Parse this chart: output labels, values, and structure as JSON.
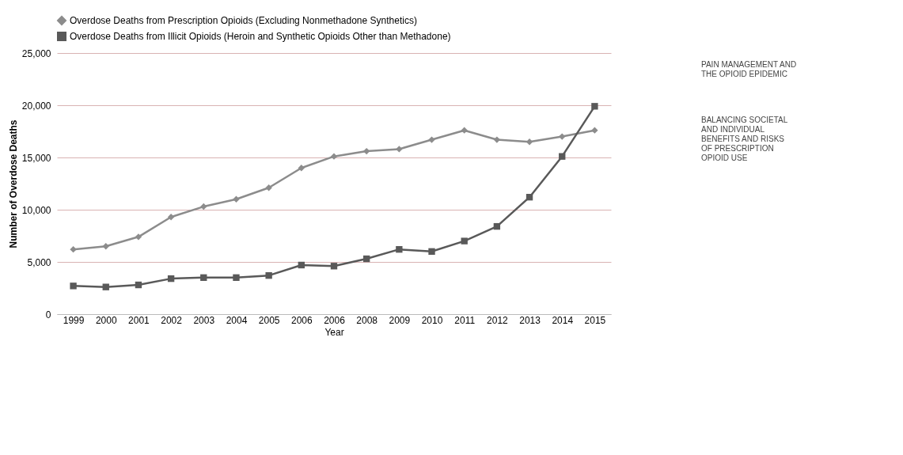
{
  "chart_data": {
    "type": "line",
    "xlabel": "Year",
    "ylabel": "Number of Overdose Deaths",
    "categories": [
      "1999",
      "2000",
      "2001",
      "2002",
      "2003",
      "2004",
      "2005",
      "2006",
      "2006",
      "2008",
      "2009",
      "2010",
      "2011",
      "2012",
      "2013",
      "2014",
      "2015"
    ],
    "series": [
      {
        "name": "Overdose Deaths from Prescription Opioids (Excluding Nonmethadone Synthetics)",
        "color": "#8c8c8c",
        "marker": "diamond",
        "values": [
          6200,
          6500,
          7400,
          9300,
          10300,
          11000,
          12100,
          14000,
          15100,
          15600,
          15800,
          16700,
          17600,
          16700,
          16500,
          17000,
          17600
        ]
      },
      {
        "name": "Overdose Deaths from Illicit Opioids (Heroin and Synthetic Opioids Other than Methadone)",
        "color": "#595959",
        "marker": "square",
        "values": [
          2700,
          2600,
          2800,
          3400,
          3500,
          3500,
          3700,
          4700,
          4600,
          5300,
          6200,
          6000,
          7000,
          8400,
          11200,
          15100,
          19900
        ]
      }
    ],
    "ylim": [
      0,
      25000
    ],
    "yticks": [
      {
        "value": 0,
        "label": "0"
      },
      {
        "value": 5000,
        "label": "5,000"
      },
      {
        "value": 10000,
        "label": "10,000"
      },
      {
        "value": 15000,
        "label": "15,000"
      },
      {
        "value": 20000,
        "label": "20,000"
      },
      {
        "value": 25000,
        "label": "25,000"
      }
    ],
    "grid": "y",
    "legend": "top left",
    "line_style": "solid",
    "annotations": [
      "PAIN MANAGEMENT AND THE OPIOID EPIDEMIC",
      "BALANCING SOCIETAL AND INDIVIDUAL BENEFITS AND RISKS OF PRESCRIPTION OPIOID USE"
    ]
  }
}
